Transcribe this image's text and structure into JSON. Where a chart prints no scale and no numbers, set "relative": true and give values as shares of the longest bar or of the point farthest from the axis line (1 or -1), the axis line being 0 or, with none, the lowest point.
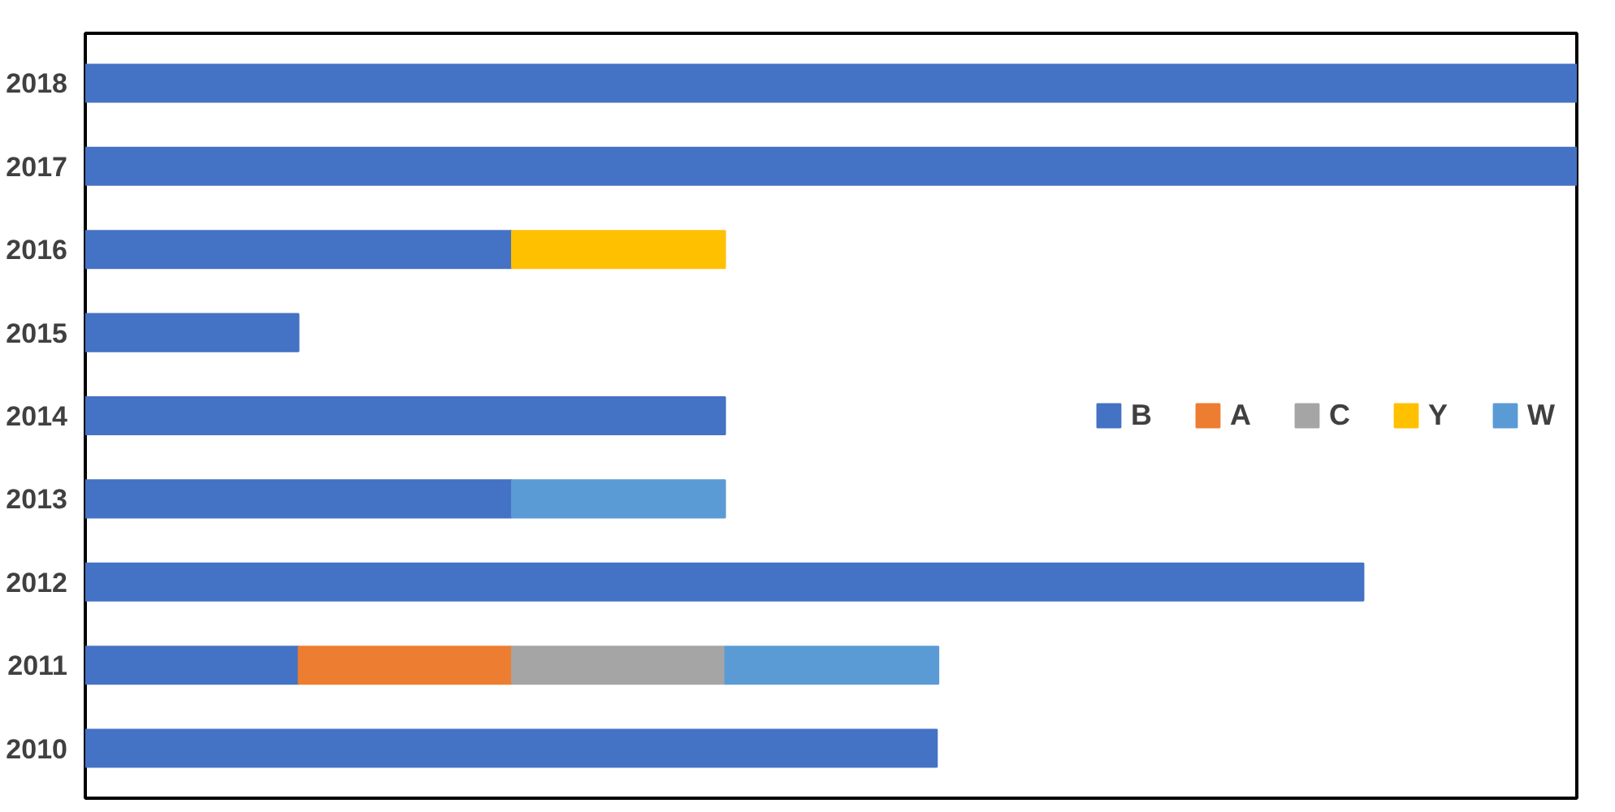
{
  "chart_data": {
    "type": "bar",
    "orientation": "horizontal",
    "stacked": true,
    "relative": true,
    "legend": "right",
    "grid": false,
    "categories": [
      "2018",
      "2017",
      "2016",
      "2015",
      "2014",
      "2013",
      "2012",
      "2011",
      "2010"
    ],
    "series": [
      {
        "name": "B",
        "color": "#4472c4",
        "values": [
          1,
          1,
          0.286,
          0.143,
          0.429,
          0.286,
          0.857,
          0.143,
          0.571
        ]
      },
      {
        "name": "A",
        "color": "#ed7d31",
        "values": [
          null,
          null,
          null,
          null,
          null,
          null,
          null,
          0.143,
          null
        ]
      },
      {
        "name": "C",
        "color": "#a5a5a5",
        "values": [
          null,
          null,
          null,
          null,
          null,
          null,
          null,
          0.143,
          null
        ]
      },
      {
        "name": "Y",
        "color": "#ffc000",
        "values": [
          null,
          null,
          0.143,
          null,
          null,
          null,
          null,
          null,
          null
        ]
      },
      {
        "name": "W",
        "color": "#5b9bd5",
        "values": [
          null,
          null,
          null,
          null,
          null,
          0.143,
          null,
          0.143,
          null
        ]
      }
    ]
  }
}
